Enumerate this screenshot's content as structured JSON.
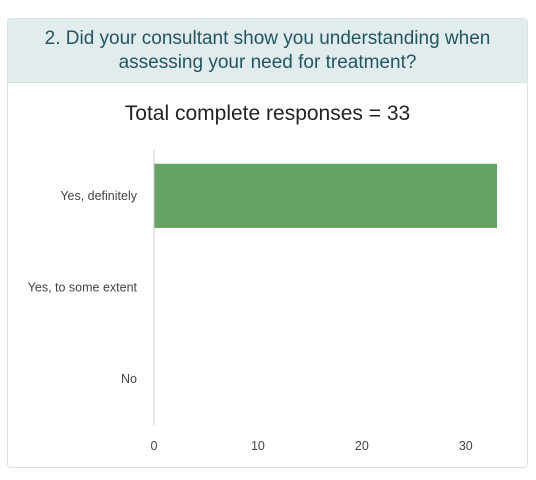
{
  "question": "2. Did your consultant show you understanding when assessing your need for treatment?",
  "subtitle": "Total complete responses = 33",
  "chart_data": {
    "type": "bar",
    "orientation": "horizontal",
    "title": "Total complete responses = 33",
    "categories": [
      "Yes, definitely",
      "Yes, to some extent",
      "No"
    ],
    "values": [
      33,
      0,
      0
    ],
    "xlim": [
      0,
      33
    ],
    "xticks": [
      0,
      10,
      20,
      30
    ],
    "xlabel": "",
    "ylabel": "",
    "grid": false,
    "legend": "none",
    "bar_color": "#66a264",
    "axis_color": "#cccccc"
  }
}
